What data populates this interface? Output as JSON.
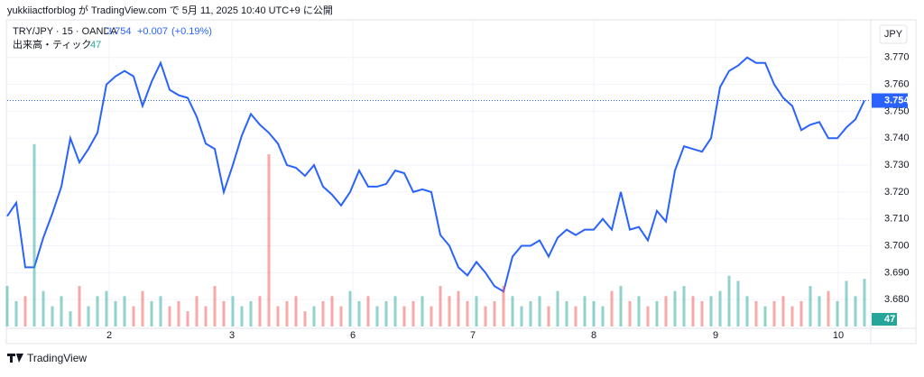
{
  "header": {
    "published": "yukkiiactforblog が TradingView.com で 5月 11, 2025 10:40 UTC+9 に公開"
  },
  "chart_data": {
    "type": "line",
    "title": "TRY/JPY · 15 · OANDA",
    "last_price": 3.754,
    "change": "+0.007",
    "change_pct": "(+0.19%)",
    "currency": "JPY",
    "volume_label": "出来高・ティック",
    "last_volume": 47,
    "brand": "TradingView",
    "x": [
      0,
      1,
      2,
      3,
      4,
      5,
      6,
      7,
      8,
      9,
      10,
      11,
      12,
      13,
      14,
      15,
      16,
      17,
      18,
      19,
      20,
      21,
      22,
      23,
      24,
      25,
      26,
      27,
      28,
      29,
      30,
      31,
      32,
      33,
      34,
      35,
      36,
      37,
      38,
      39,
      40,
      41,
      42,
      43,
      44,
      45,
      46,
      47,
      48,
      49,
      50,
      51,
      52,
      53,
      54,
      55,
      56,
      57,
      58,
      59,
      60,
      61,
      62,
      63,
      64,
      65,
      66,
      67,
      68,
      69,
      70,
      71,
      72,
      73,
      74,
      75,
      76,
      77,
      78,
      79,
      80,
      81,
      82,
      83,
      84,
      85,
      86,
      87,
      88,
      89,
      90,
      91,
      92,
      93,
      94,
      95
    ],
    "series": [
      {
        "name": "TRY/JPY",
        "color": "#2962ff",
        "values": [
          3.711,
          3.716,
          3.692,
          3.692,
          3.703,
          3.712,
          3.722,
          3.74,
          3.731,
          3.736,
          3.742,
          3.76,
          3.763,
          3.765,
          3.763,
          3.752,
          3.761,
          3.768,
          3.758,
          3.756,
          3.755,
          3.748,
          3.738,
          3.736,
          3.72,
          3.73,
          3.741,
          3.749,
          3.745,
          3.742,
          3.738,
          3.73,
          3.729,
          3.726,
          3.73,
          3.722,
          3.719,
          3.715,
          3.72,
          3.728,
          3.722,
          3.722,
          3.723,
          3.728,
          3.727,
          3.72,
          3.721,
          3.72,
          3.704,
          3.7,
          3.692,
          3.689,
          3.694,
          3.69,
          3.685,
          3.683,
          3.696,
          3.7,
          3.7,
          3.702,
          3.696,
          3.703,
          3.706,
          3.704,
          3.706,
          3.706,
          3.71,
          3.706,
          3.72,
          3.706,
          3.707,
          3.702,
          3.713,
          3.709,
          3.728,
          3.737,
          3.736,
          3.735,
          3.74,
          3.759,
          3.765,
          3.767,
          3.77,
          3.768,
          3.768,
          3.76,
          3.755,
          3.752,
          3.743,
          3.745,
          3.746,
          3.74,
          3.74,
          3.744,
          3.747,
          3.754
        ]
      },
      {
        "name": "出来高",
        "axis": "y2",
        "values": [
          40,
          25,
          30,
          180,
          35,
          20,
          30,
          15,
          40,
          20,
          30,
          35,
          25,
          30,
          20,
          35,
          25,
          30,
          20,
          25,
          15,
          30,
          20,
          40,
          25,
          30,
          20,
          25,
          30,
          170,
          20,
          25,
          30,
          15,
          20,
          25,
          30,
          20,
          35,
          25,
          30,
          20,
          25,
          30,
          20,
          25,
          30,
          20,
          40,
          30,
          35,
          25,
          30,
          20,
          25,
          40,
          30,
          20,
          25,
          30,
          20,
          35,
          25,
          20,
          30,
          25,
          20,
          35,
          40,
          25,
          30,
          20,
          25,
          30,
          35,
          40,
          30,
          25,
          30,
          35,
          50,
          45,
          30,
          25,
          20,
          25,
          30,
          20,
          25,
          40,
          30,
          35,
          25,
          45,
          30,
          47
        ]
      }
    ],
    "ylim": [
      3.67,
      3.783
    ],
    "yticks": [
      {
        "value": 3.68,
        "label": "3.680"
      },
      {
        "value": 3.69,
        "label": "3.690"
      },
      {
        "value": 3.7,
        "label": "3.700"
      },
      {
        "value": 3.71,
        "label": "3.710"
      },
      {
        "value": 3.72,
        "label": "3.720"
      },
      {
        "value": 3.73,
        "label": "3.730"
      },
      {
        "value": 3.74,
        "label": "3.740"
      },
      {
        "value": 3.75,
        "label": "3.750"
      },
      {
        "value": 3.76,
        "label": "3.760"
      },
      {
        "value": 3.77,
        "label": "3.770"
      }
    ],
    "y2lim": [
      0,
      300
    ],
    "xlim": [
      0,
      95
    ],
    "xticks": [
      {
        "value": 11.3,
        "label": "2"
      },
      {
        "value": 24.9,
        "label": "3"
      },
      {
        "value": 38.3,
        "label": "6"
      },
      {
        "value": 51.6,
        "label": "7"
      },
      {
        "value": 65,
        "label": "8"
      },
      {
        "value": 78.5,
        "label": "9"
      },
      {
        "value": 92.1,
        "label": "10"
      }
    ],
    "grid": true
  }
}
